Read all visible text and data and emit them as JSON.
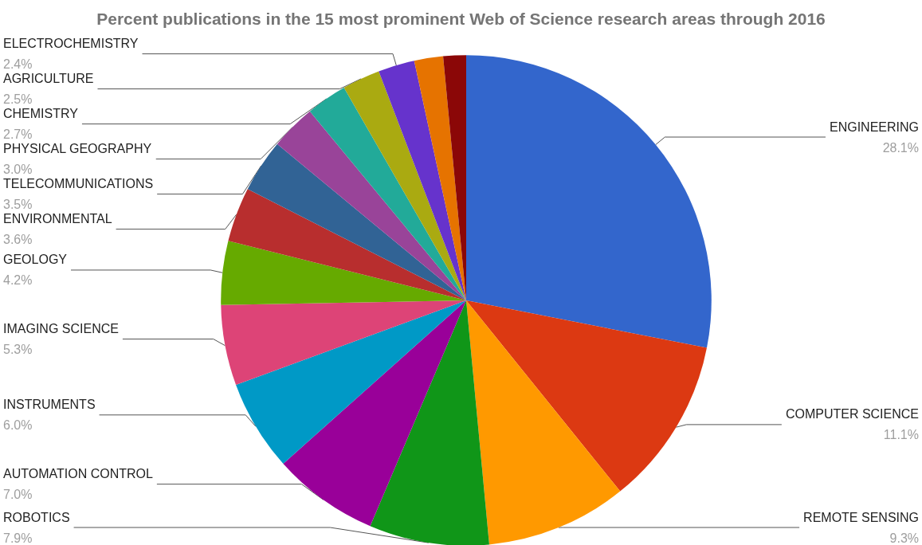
{
  "chart_data": {
    "type": "pie",
    "title": "Percent publications in the 15 most prominent Web of Science research areas through 2016",
    "categories": [
      "ENGINEERING",
      "COMPUTER SCIENCE",
      "REMOTE SENSING",
      "ROBOTICS",
      "AUTOMATION CONTROL",
      "INSTRUMENTS",
      "IMAGING SCIENCE",
      "GEOLOGY",
      "ENVIRONMENTAL",
      "TELECOMMUNICATIONS",
      "PHYSICAL GEOGRAPHY",
      "CHEMISTRY",
      "AGRICULTURE",
      "ELECTROCHEMISTRY",
      null,
      null
    ],
    "values": [
      28.1,
      11.1,
      9.3,
      7.9,
      7.0,
      6.0,
      5.3,
      4.2,
      3.6,
      3.5,
      3.0,
      2.7,
      2.5,
      2.4,
      1.9,
      1.5
    ],
    "value_labels": [
      "28.1%",
      "11.1%",
      "9.3%",
      "7.9%",
      "7.0%",
      "6.0%",
      "5.3%",
      "4.2%",
      "3.6%",
      "3.5%",
      "3.0%",
      "2.7%",
      "2.5%",
      "2.4%",
      null,
      null
    ],
    "colors": [
      "#3366cc",
      "#dc3912",
      "#ff9900",
      "#109618",
      "#990099",
      "#0099c6",
      "#dd4477",
      "#66aa00",
      "#b82e2e",
      "#316395",
      "#994499",
      "#22aa99",
      "#aaaa11",
      "#6633cc",
      "#e67300",
      "#8b0707"
    ],
    "legend": false
  }
}
